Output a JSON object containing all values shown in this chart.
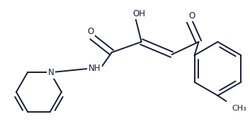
{
  "bg_color": "#ffffff",
  "line_color": "#1a1a3e",
  "line_width": 1.4,
  "font_size": 8.5,
  "figsize": [
    3.53,
    1.92
  ],
  "dpi": 100,
  "xlim": [
    0,
    353
  ],
  "ylim": [
    0,
    192
  ]
}
